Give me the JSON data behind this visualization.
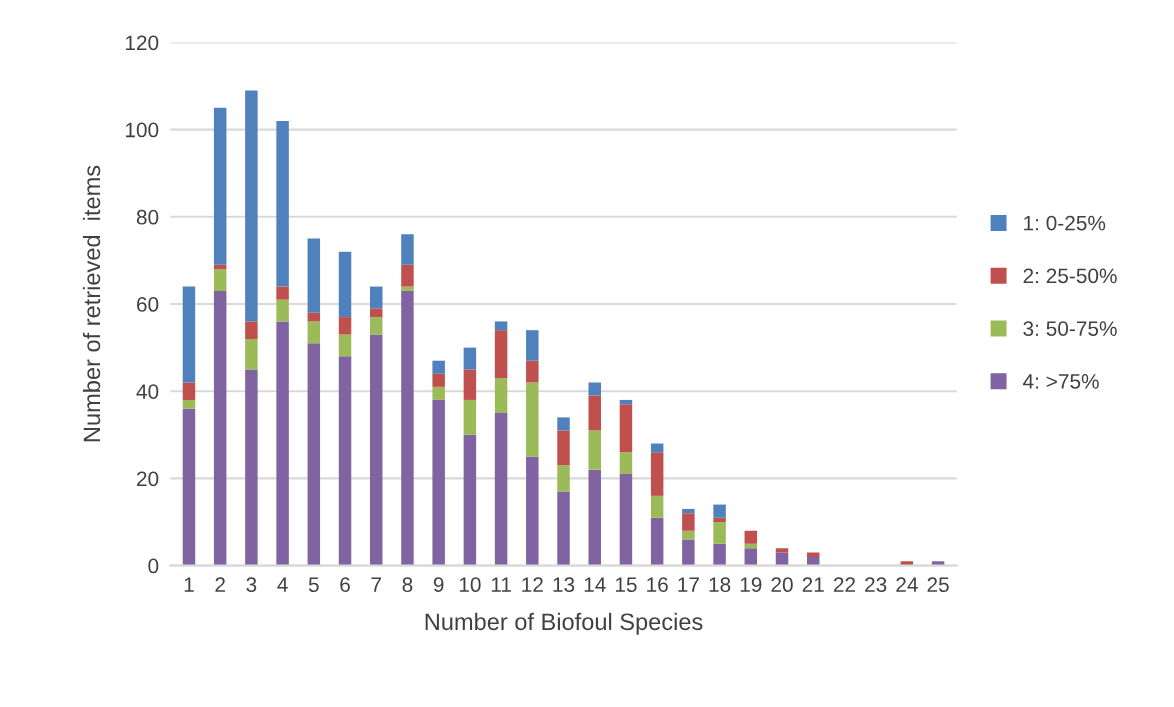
{
  "chart_data": {
    "type": "bar",
    "stacked": true,
    "xlabel": "Number of Biofoul Species",
    "ylabel": "Number of retrieved  items",
    "categories": [
      "1",
      "2",
      "3",
      "4",
      "5",
      "6",
      "7",
      "8",
      "9",
      "10",
      "11",
      "12",
      "13",
      "14",
      "15",
      "16",
      "17",
      "18",
      "19",
      "20",
      "21",
      "22",
      "23",
      "24",
      "25"
    ],
    "series": [
      {
        "name": "4: >75%",
        "color": "#8064a2",
        "values": [
          36,
          63,
          45,
          56,
          51,
          48,
          53,
          63,
          38,
          30,
          35,
          25,
          17,
          22,
          21,
          11,
          6,
          5,
          4,
          3,
          2,
          0,
          0,
          0,
          1
        ]
      },
      {
        "name": "3: 50-75%",
        "color": "#9bbb59",
        "values": [
          2,
          5,
          7,
          5,
          5,
          5,
          4,
          1,
          3,
          8,
          8,
          17,
          6,
          9,
          5,
          5,
          2,
          5,
          1,
          0,
          0,
          0,
          0,
          0,
          0
        ]
      },
      {
        "name": "2: 25-50%",
        "color": "#c0504d",
        "values": [
          4,
          1,
          4,
          3,
          2,
          4,
          2,
          5,
          3,
          7,
          11,
          5,
          8,
          8,
          11,
          10,
          4,
          1,
          3,
          1,
          1,
          0,
          0,
          1,
          0
        ]
      },
      {
        "name": "1: 0-25%",
        "color": "#4f81bd",
        "values": [
          22,
          36,
          53,
          38,
          17,
          15,
          5,
          7,
          3,
          5,
          2,
          7,
          3,
          3,
          1,
          2,
          1,
          3,
          0,
          0,
          0,
          0,
          0,
          0,
          0
        ]
      }
    ],
    "ylim": [
      0,
      120
    ],
    "yticks": [
      0,
      20,
      40,
      60,
      80,
      100,
      120
    ],
    "grid": "y",
    "legend": "right"
  }
}
